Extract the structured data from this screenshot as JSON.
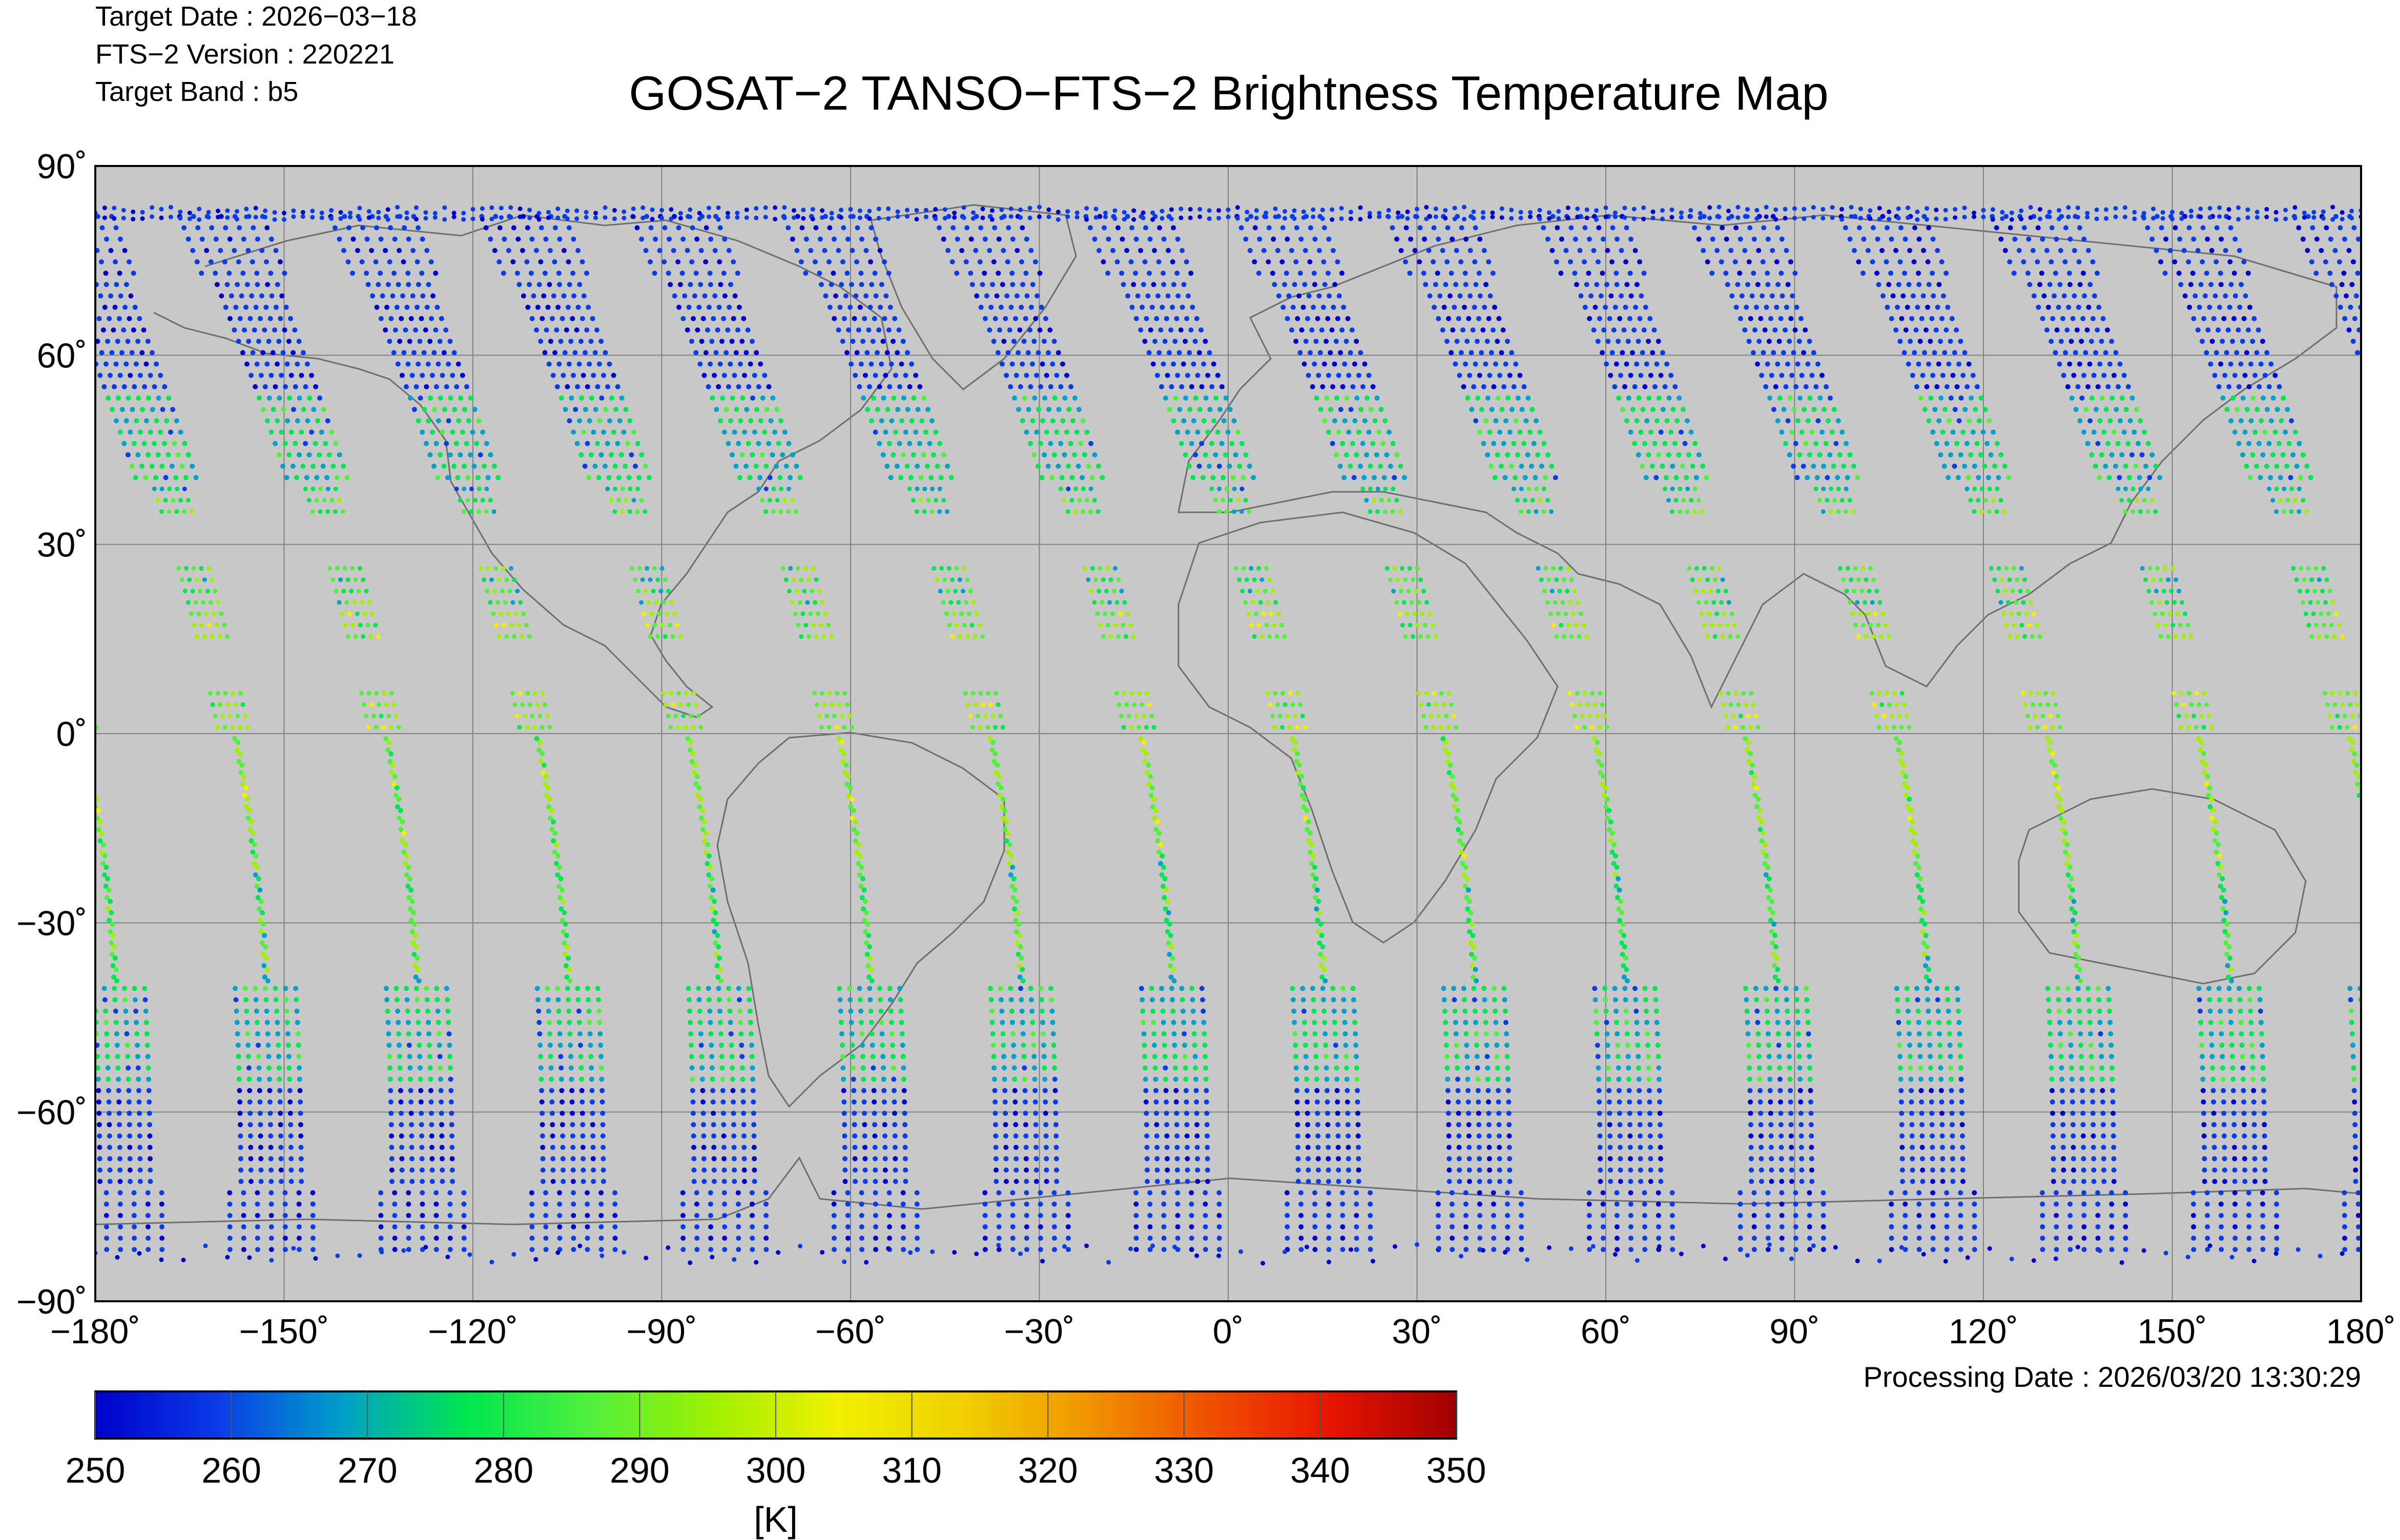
{
  "header": {
    "target_date": "Target Date   : 2026−03−18",
    "fts_version": "FTS−2 Version : 220221",
    "target_band": "Target Band   : b5"
  },
  "chart_data": {
    "type": "scatter",
    "title": "GOSAT−2 TANSO−FTS−2 Brightness Temperature Map",
    "xlim": [
      -180,
      180
    ],
    "ylim": [
      -90,
      90
    ],
    "grid": true,
    "x_tick_labels": [
      "−180˚",
      "−150˚",
      "−120˚",
      "−90˚",
      "−60˚",
      "−30˚",
      "0˚",
      "30˚",
      "60˚",
      "90˚",
      "120˚",
      "150˚",
      "180˚"
    ],
    "x_tick_values": [
      -180,
      -150,
      -120,
      -90,
      -60,
      -30,
      0,
      30,
      60,
      90,
      120,
      150,
      180
    ],
    "y_tick_labels": [
      "90˚",
      "60˚",
      "30˚",
      "0˚",
      "−30˚",
      "−60˚",
      "−90˚"
    ],
    "y_tick_values": [
      90,
      60,
      30,
      0,
      -30,
      -60,
      -90
    ],
    "colorbar": {
      "min": 250,
      "max": 350,
      "tick_labels": [
        "250",
        "260",
        "270",
        "280",
        "290",
        "300",
        "310",
        "320",
        "330",
        "340",
        "350"
      ],
      "tick_values": [
        250,
        260,
        270,
        280,
        290,
        300,
        310,
        320,
        330,
        340,
        350
      ],
      "unit": "[K]",
      "colors": [
        "#0000cd",
        "#0a3ce6",
        "#00a0c8",
        "#00e650",
        "#50f03c",
        "#a0f000",
        "#f0f000",
        "#f0d000",
        "#f09600",
        "#f05000",
        "#e61400",
        "#a00000"
      ]
    },
    "orbit_tracks_start_lon": [
      -160,
      -136,
      -112,
      -88,
      -64,
      -40,
      -16,
      8,
      32,
      56,
      80,
      104,
      128,
      152,
      176
    ]
  },
  "footer": {
    "processing_date": "Processing Date : 2026/03/20 13:30:29"
  },
  "colors": {
    "ocean": "#c8c8c8",
    "grid": "#808080",
    "coast": "#6e6e6e"
  }
}
